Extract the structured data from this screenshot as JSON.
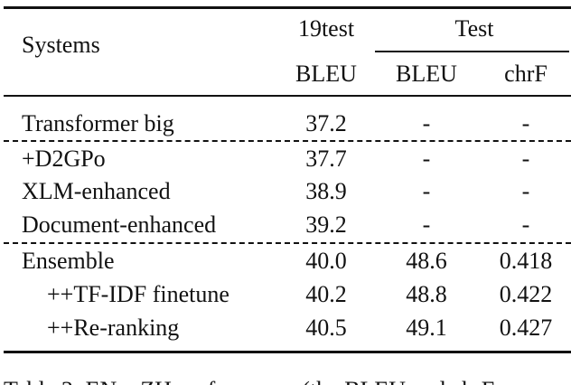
{
  "table": {
    "header": {
      "systems": "Systems",
      "group1": "19test",
      "group2": "Test",
      "col1": "BLEU",
      "col2": "BLEU",
      "col3": "chrF"
    },
    "rows": [
      [
        "Transformer big",
        "37.2",
        "-",
        "-"
      ],
      [
        "+D2GPo",
        "37.7",
        "-",
        "-"
      ],
      [
        "XLM-enhanced",
        "38.9",
        "-",
        "-"
      ],
      [
        "Document-enhanced",
        "39.2",
        "-",
        "-"
      ],
      [
        "Ensemble",
        "40.0",
        "48.6",
        "0.418"
      ],
      [
        "++TF-IDF finetune",
        "40.2",
        "48.8",
        "0.422"
      ],
      [
        "++Re-ranking",
        "40.5",
        "49.1",
        "0.427"
      ]
    ]
  },
  "caption": "Table 3: EN→ZH performance (the BLEU and chrF"
}
